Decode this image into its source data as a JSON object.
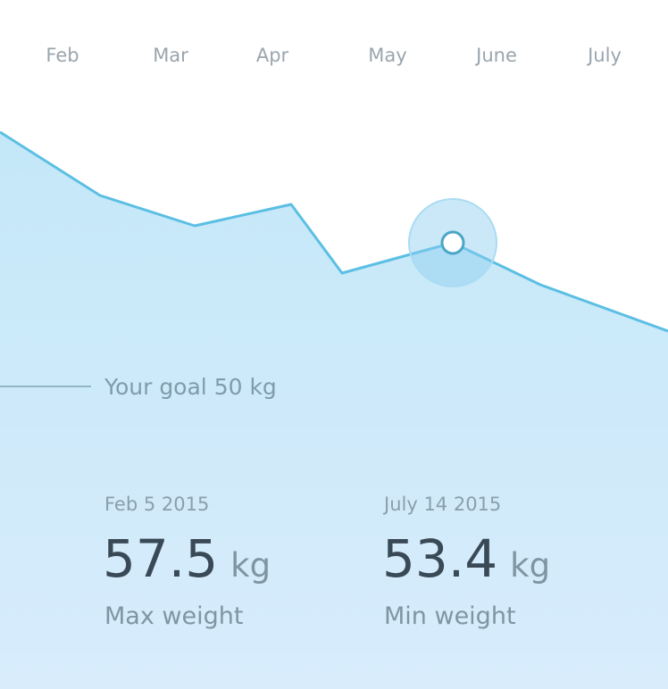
{
  "months": [
    "Feb",
    "Mar",
    "Apr",
    "May",
    "June",
    "July"
  ],
  "goal": "Your goal 50 kg",
  "stats": [
    {
      "date": "Feb 5 2015",
      "value": 57.5,
      "unit": "kg",
      "label": "Max weight"
    },
    {
      "date": "July 14 2015",
      "value": 53.4,
      "unit": "kg",
      "label": "Min weight"
    }
  ]
}
